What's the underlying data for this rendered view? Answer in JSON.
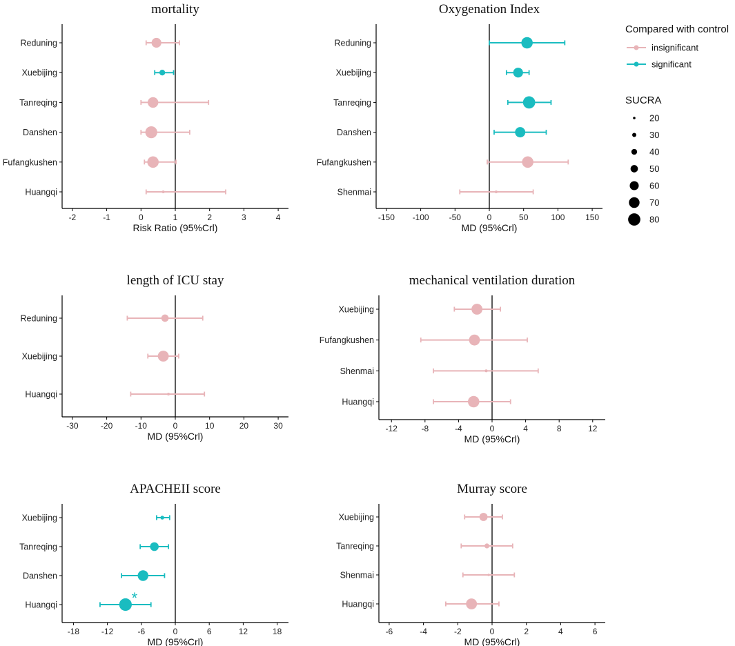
{
  "colors": {
    "insignificant": "#e8b4b8",
    "significant": "#1abcc0",
    "axis": "#000000"
  },
  "legend": {
    "color_title": "Compared with control",
    "color_items": [
      {
        "label": "insignificant",
        "color_key": "insignificant"
      },
      {
        "label": "significant",
        "color_key": "significant"
      }
    ],
    "size_title": "SUCRA",
    "size_items": [
      20,
      30,
      40,
      50,
      60,
      70,
      80
    ]
  },
  "chart_data": [
    {
      "type": "forest",
      "title": "mortality",
      "xlabel": "Risk Ratio (95%Crl)",
      "xlim": [
        -2.3,
        4.3
      ],
      "xticks": [
        -2,
        -1,
        0,
        1,
        2,
        3,
        4
      ],
      "ref": 1,
      "rows": [
        {
          "label": "Reduning",
          "est": 0.45,
          "lo": 0.15,
          "hi": 1.12,
          "sucra": 65,
          "sig": false
        },
        {
          "label": "Xuebijing",
          "est": 0.62,
          "lo": 0.4,
          "hi": 0.95,
          "sucra": 40,
          "sig": true
        },
        {
          "label": "Tanreqing",
          "est": 0.35,
          "lo": 0.0,
          "hi": 1.97,
          "sucra": 70,
          "sig": false
        },
        {
          "label": "Danshen",
          "est": 0.3,
          "lo": 0.0,
          "hi": 1.42,
          "sucra": 78,
          "sig": false
        },
        {
          "label": "Fufangkushen",
          "est": 0.35,
          "lo": 0.1,
          "hi": 1.02,
          "sucra": 75,
          "sig": false
        },
        {
          "label": "Huangqi",
          "est": 0.65,
          "lo": 0.15,
          "hi": 2.47,
          "sucra": 22,
          "sig": false
        }
      ]
    },
    {
      "type": "forest",
      "title": "Oxygenation Index",
      "xlabel": "MD (95%Crl)",
      "xlim": [
        -165,
        165
      ],
      "xticks": [
        -150,
        -100,
        -50,
        0,
        50,
        100,
        150
      ],
      "ref": 0,
      "rows": [
        {
          "label": "Reduning",
          "est": 55,
          "lo": 0,
          "hi": 110,
          "sucra": 75,
          "sig": true
        },
        {
          "label": "Xuebijing",
          "est": 42,
          "lo": 25,
          "hi": 58,
          "sucra": 65,
          "sig": true
        },
        {
          "label": "Tanreqing",
          "est": 58,
          "lo": 27,
          "hi": 90,
          "sucra": 80,
          "sig": true
        },
        {
          "label": "Danshen",
          "est": 45,
          "lo": 7,
          "hi": 83,
          "sucra": 68,
          "sig": true
        },
        {
          "label": "Fufangkushen",
          "est": 56,
          "lo": -3,
          "hi": 115,
          "sucra": 75,
          "sig": false
        },
        {
          "label": "Shenmai",
          "est": 10,
          "lo": -43,
          "hi": 64,
          "sucra": 22,
          "sig": false
        }
      ]
    },
    {
      "type": "forest",
      "title": "length of ICU stay",
      "xlabel": "MD (95%Crl)",
      "xlim": [
        -33,
        33
      ],
      "xticks": [
        -30,
        -20,
        -10,
        0,
        10,
        20,
        30
      ],
      "ref": 0,
      "rows": [
        {
          "label": "Reduning",
          "est": -3,
          "lo": -14,
          "hi": 8,
          "sucra": 50,
          "sig": false
        },
        {
          "label": "Xuebijing",
          "est": -3.5,
          "lo": -8,
          "hi": 1,
          "sucra": 72,
          "sig": false
        },
        {
          "label": "Huangqi",
          "est": -2,
          "lo": -13,
          "hi": 8.5,
          "sucra": 22,
          "sig": false
        }
      ]
    },
    {
      "type": "forest",
      "title": "mechanical ventilation duration",
      "xlabel": "MD (95%Crl)",
      "xlim": [
        -13.5,
        13.5
      ],
      "xticks": [
        -12,
        -8,
        -4,
        0,
        4,
        8,
        12
      ],
      "ref": 0,
      "rows": [
        {
          "label": "Xuebijing",
          "est": -1.8,
          "lo": -4.5,
          "hi": 1,
          "sucra": 72,
          "sig": false
        },
        {
          "label": "Fufangkushen",
          "est": -2.1,
          "lo": -8.5,
          "hi": 4.2,
          "sucra": 72,
          "sig": false
        },
        {
          "label": "Shenmai",
          "est": -0.7,
          "lo": -7,
          "hi": 5.5,
          "sucra": 22,
          "sig": false
        },
        {
          "label": "Huangqi",
          "est": -2.2,
          "lo": -7,
          "hi": 2.2,
          "sucra": 75,
          "sig": false
        }
      ]
    },
    {
      "type": "forest",
      "title": "APACHEII score",
      "xlabel": "MD (95%Crl)",
      "xlim": [
        -20,
        20
      ],
      "xticks": [
        -18,
        -12,
        -6,
        0,
        6,
        12,
        18
      ],
      "ref": 0,
      "rows": [
        {
          "label": "Xuebijing",
          "est": -2.3,
          "lo": -3.3,
          "hi": -1.0,
          "sucra": 28,
          "sig": true
        },
        {
          "label": "Tanreqing",
          "est": -3.7,
          "lo": -6.2,
          "hi": -1.2,
          "sucra": 58,
          "sig": true
        },
        {
          "label": "Danshen",
          "est": -5.7,
          "lo": -9.5,
          "hi": -1.9,
          "sucra": 70,
          "sig": true
        },
        {
          "label": "Huangqi",
          "est": -8.8,
          "lo": -13.3,
          "hi": -4.3,
          "sucra": 82,
          "sig": true,
          "mark": "*"
        }
      ]
    },
    {
      "type": "forest",
      "title": "Murray score",
      "xlabel": "MD (95%Crl)",
      "xlim": [
        -6.6,
        6.6
      ],
      "xticks": [
        -6,
        -4,
        -2,
        0,
        2,
        4,
        6
      ],
      "ref": 0,
      "rows": [
        {
          "label": "Xuebijing",
          "est": -0.5,
          "lo": -1.6,
          "hi": 0.6,
          "sucra": 55,
          "sig": false
        },
        {
          "label": "Tanreqing",
          "est": -0.3,
          "lo": -1.8,
          "hi": 1.2,
          "sucra": 35,
          "sig": false
        },
        {
          "label": "Shenmai",
          "est": -0.2,
          "lo": -1.7,
          "hi": 1.3,
          "sucra": 20,
          "sig": false
        },
        {
          "label": "Huangqi",
          "est": -1.2,
          "lo": -2.7,
          "hi": 0.4,
          "sucra": 72,
          "sig": false
        }
      ]
    }
  ]
}
